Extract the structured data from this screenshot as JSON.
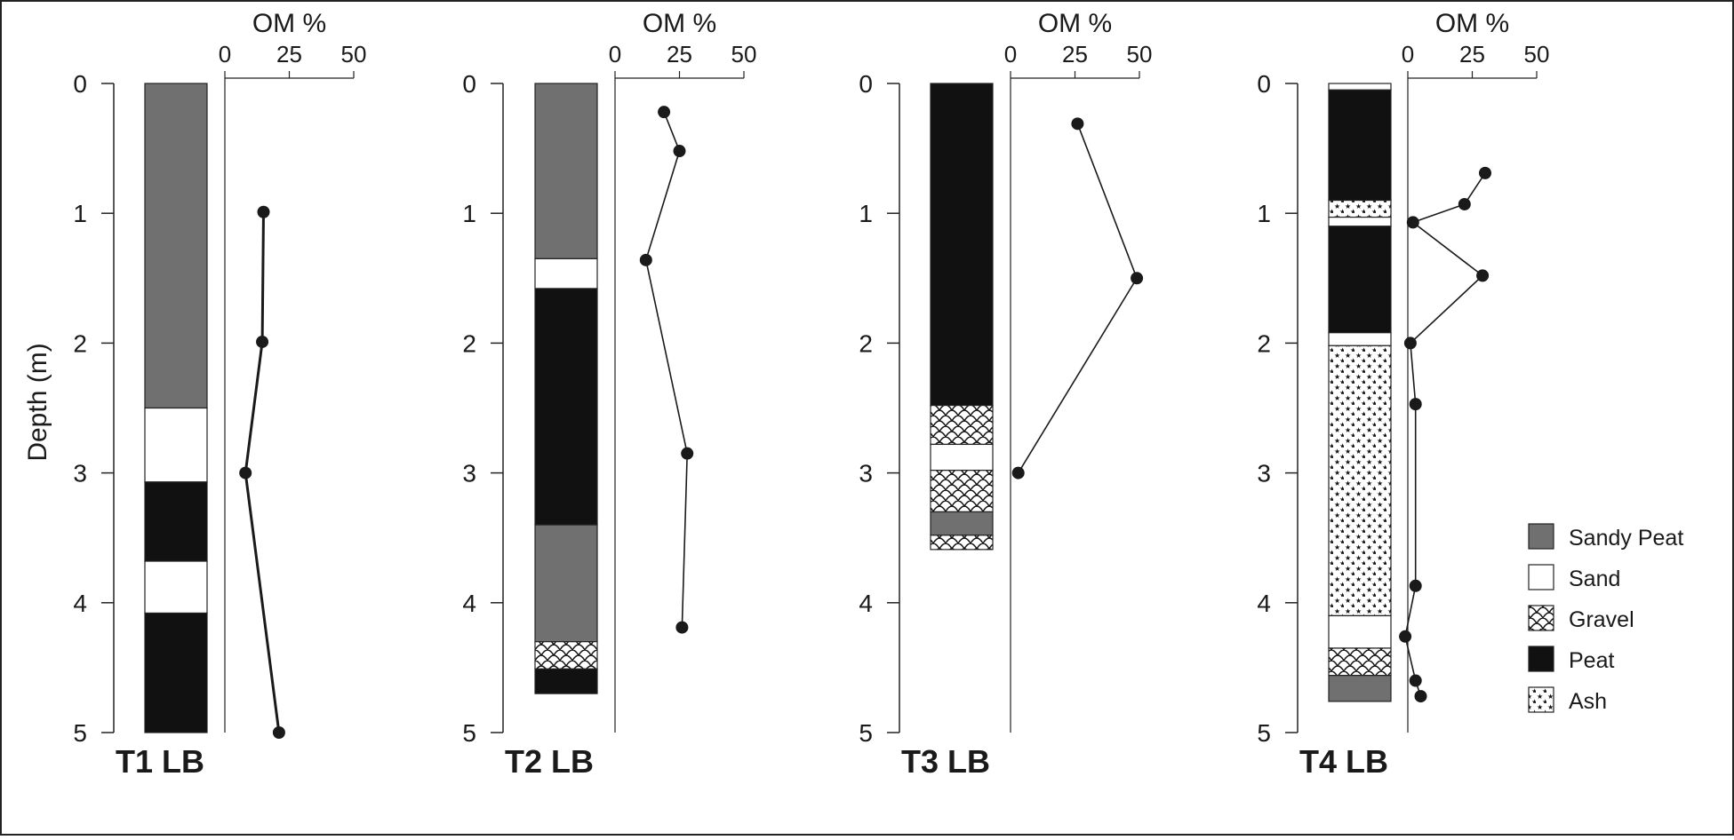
{
  "chart_data": {
    "type": "line",
    "ylabel": "Depth (m)",
    "xlabel": "OM %",
    "x_ticks": [
      "0",
      "25",
      "50"
    ],
    "y_ticks": [
      "0",
      "1",
      "2",
      "3",
      "4",
      "5"
    ],
    "xlim": [
      0,
      50
    ],
    "ylim": [
      0,
      5
    ],
    "y_inverted": true,
    "legend": {
      "placement": "right",
      "entries": [
        {
          "name": "Sandy Peat",
          "pattern": "sandy_peat"
        },
        {
          "name": "Sand",
          "pattern": "sand"
        },
        {
          "name": "Gravel",
          "pattern": "gravel"
        },
        {
          "name": "Peat",
          "pattern": "peat"
        },
        {
          "name": "Ash",
          "pattern": "ash"
        }
      ]
    },
    "colors": {
      "sandy_peat": "#707070",
      "peat": "#111111",
      "sand": "#ffffff",
      "line": "#1a1a1a"
    },
    "panels": [
      {
        "title": "T1 LB",
        "layers": [
          {
            "from": 0,
            "to": 2.5,
            "type": "sandy_peat"
          },
          {
            "from": 2.5,
            "to": 3.07,
            "type": "sand"
          },
          {
            "from": 3.07,
            "to": 3.68,
            "type": "peat"
          },
          {
            "from": 3.68,
            "to": 4.08,
            "type": "sand"
          },
          {
            "from": 4.08,
            "to": 5.0,
            "type": "peat"
          }
        ],
        "om": [
          {
            "depth": 0.99,
            "om": 15
          },
          {
            "depth": 1.99,
            "om": 14.5
          },
          {
            "depth": 3.0,
            "om": 8
          },
          {
            "depth": 5.0,
            "om": 21
          }
        ]
      },
      {
        "title": "T2 LB",
        "layers": [
          {
            "from": 0,
            "to": 1.35,
            "type": "sandy_peat"
          },
          {
            "from": 1.35,
            "to": 1.58,
            "type": "sand"
          },
          {
            "from": 1.58,
            "to": 3.4,
            "type": "peat"
          },
          {
            "from": 3.4,
            "to": 4.3,
            "type": "sandy_peat"
          },
          {
            "from": 4.3,
            "to": 4.51,
            "type": "gravel"
          },
          {
            "from": 4.51,
            "to": 4.7,
            "type": "peat"
          }
        ],
        "om": [
          {
            "depth": 0.22,
            "om": 19
          },
          {
            "depth": 0.52,
            "om": 25
          },
          {
            "depth": 1.36,
            "om": 12
          },
          {
            "depth": 2.85,
            "om": 28
          },
          {
            "depth": 4.19,
            "om": 26
          }
        ]
      },
      {
        "title": "T3 LB",
        "layers": [
          {
            "from": 0,
            "to": 2.48,
            "type": "peat"
          },
          {
            "from": 2.48,
            "to": 2.78,
            "type": "gravel"
          },
          {
            "from": 2.78,
            "to": 2.98,
            "type": "sand"
          },
          {
            "from": 2.98,
            "to": 3.3,
            "type": "gravel"
          },
          {
            "from": 3.3,
            "to": 3.48,
            "type": "sandy_peat"
          },
          {
            "from": 3.48,
            "to": 3.59,
            "type": "gravel"
          }
        ],
        "om": [
          {
            "depth": 0.31,
            "om": 26
          },
          {
            "depth": 1.5,
            "om": 49
          },
          {
            "depth": 3.0,
            "om": 3
          }
        ]
      },
      {
        "title": "T4 LB",
        "layers": [
          {
            "from": 0,
            "to": 0.05,
            "type": "sand"
          },
          {
            "from": 0.05,
            "to": 0.9,
            "type": "peat"
          },
          {
            "from": 0.9,
            "to": 1.03,
            "type": "ash"
          },
          {
            "from": 1.03,
            "to": 1.1,
            "type": "sand"
          },
          {
            "from": 1.1,
            "to": 1.92,
            "type": "peat"
          },
          {
            "from": 1.92,
            "to": 2.02,
            "type": "sand"
          },
          {
            "from": 2.02,
            "to": 4.1,
            "type": "ash"
          },
          {
            "from": 4.1,
            "to": 4.35,
            "type": "sand"
          },
          {
            "from": 4.35,
            "to": 4.56,
            "type": "gravel"
          },
          {
            "from": 4.56,
            "to": 4.76,
            "type": "sandy_peat"
          }
        ],
        "om": [
          {
            "depth": 0.69,
            "om": 30
          },
          {
            "depth": 0.93,
            "om": 22
          },
          {
            "depth": 1.07,
            "om": 2
          },
          {
            "depth": 1.48,
            "om": 29
          },
          {
            "depth": 2.0,
            "om": 1
          },
          {
            "depth": 2.47,
            "om": 3
          },
          {
            "depth": 3.87,
            "om": 3
          },
          {
            "depth": 4.26,
            "om": -1
          },
          {
            "depth": 4.6,
            "om": 3
          },
          {
            "depth": 4.72,
            "om": 5
          }
        ]
      }
    ]
  }
}
